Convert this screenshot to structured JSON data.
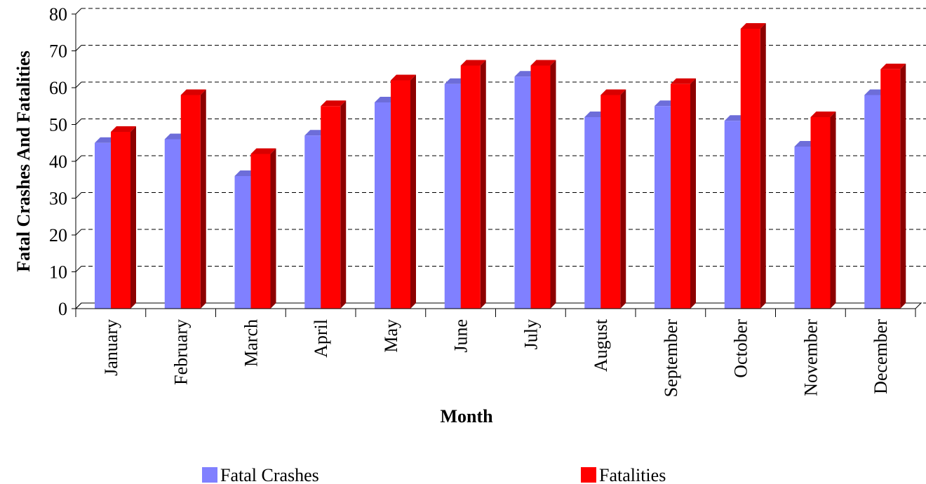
{
  "chart_data": {
    "type": "bar",
    "x_label": "Month",
    "y_label": "Fatal Crashes And Fatalities",
    "categories": [
      "January",
      "February",
      "March",
      "April",
      "May",
      "June",
      "July",
      "August",
      "September",
      "October",
      "November",
      "December"
    ],
    "series": [
      {
        "name": "Fatal Crashes",
        "color": "#8080ff",
        "values": [
          45,
          46,
          36,
          47,
          56,
          61,
          63,
          52,
          55,
          51,
          44,
          58
        ]
      },
      {
        "name": "Fatalities",
        "color": "#ff0000",
        "values": [
          48,
          58,
          42,
          55,
          62,
          66,
          66,
          58,
          61,
          76,
          52,
          65
        ]
      }
    ],
    "ylim": [
      0,
      80
    ],
    "yticks": [
      0,
      10,
      20,
      30,
      40,
      50,
      60,
      70,
      80
    ],
    "grid": true
  }
}
